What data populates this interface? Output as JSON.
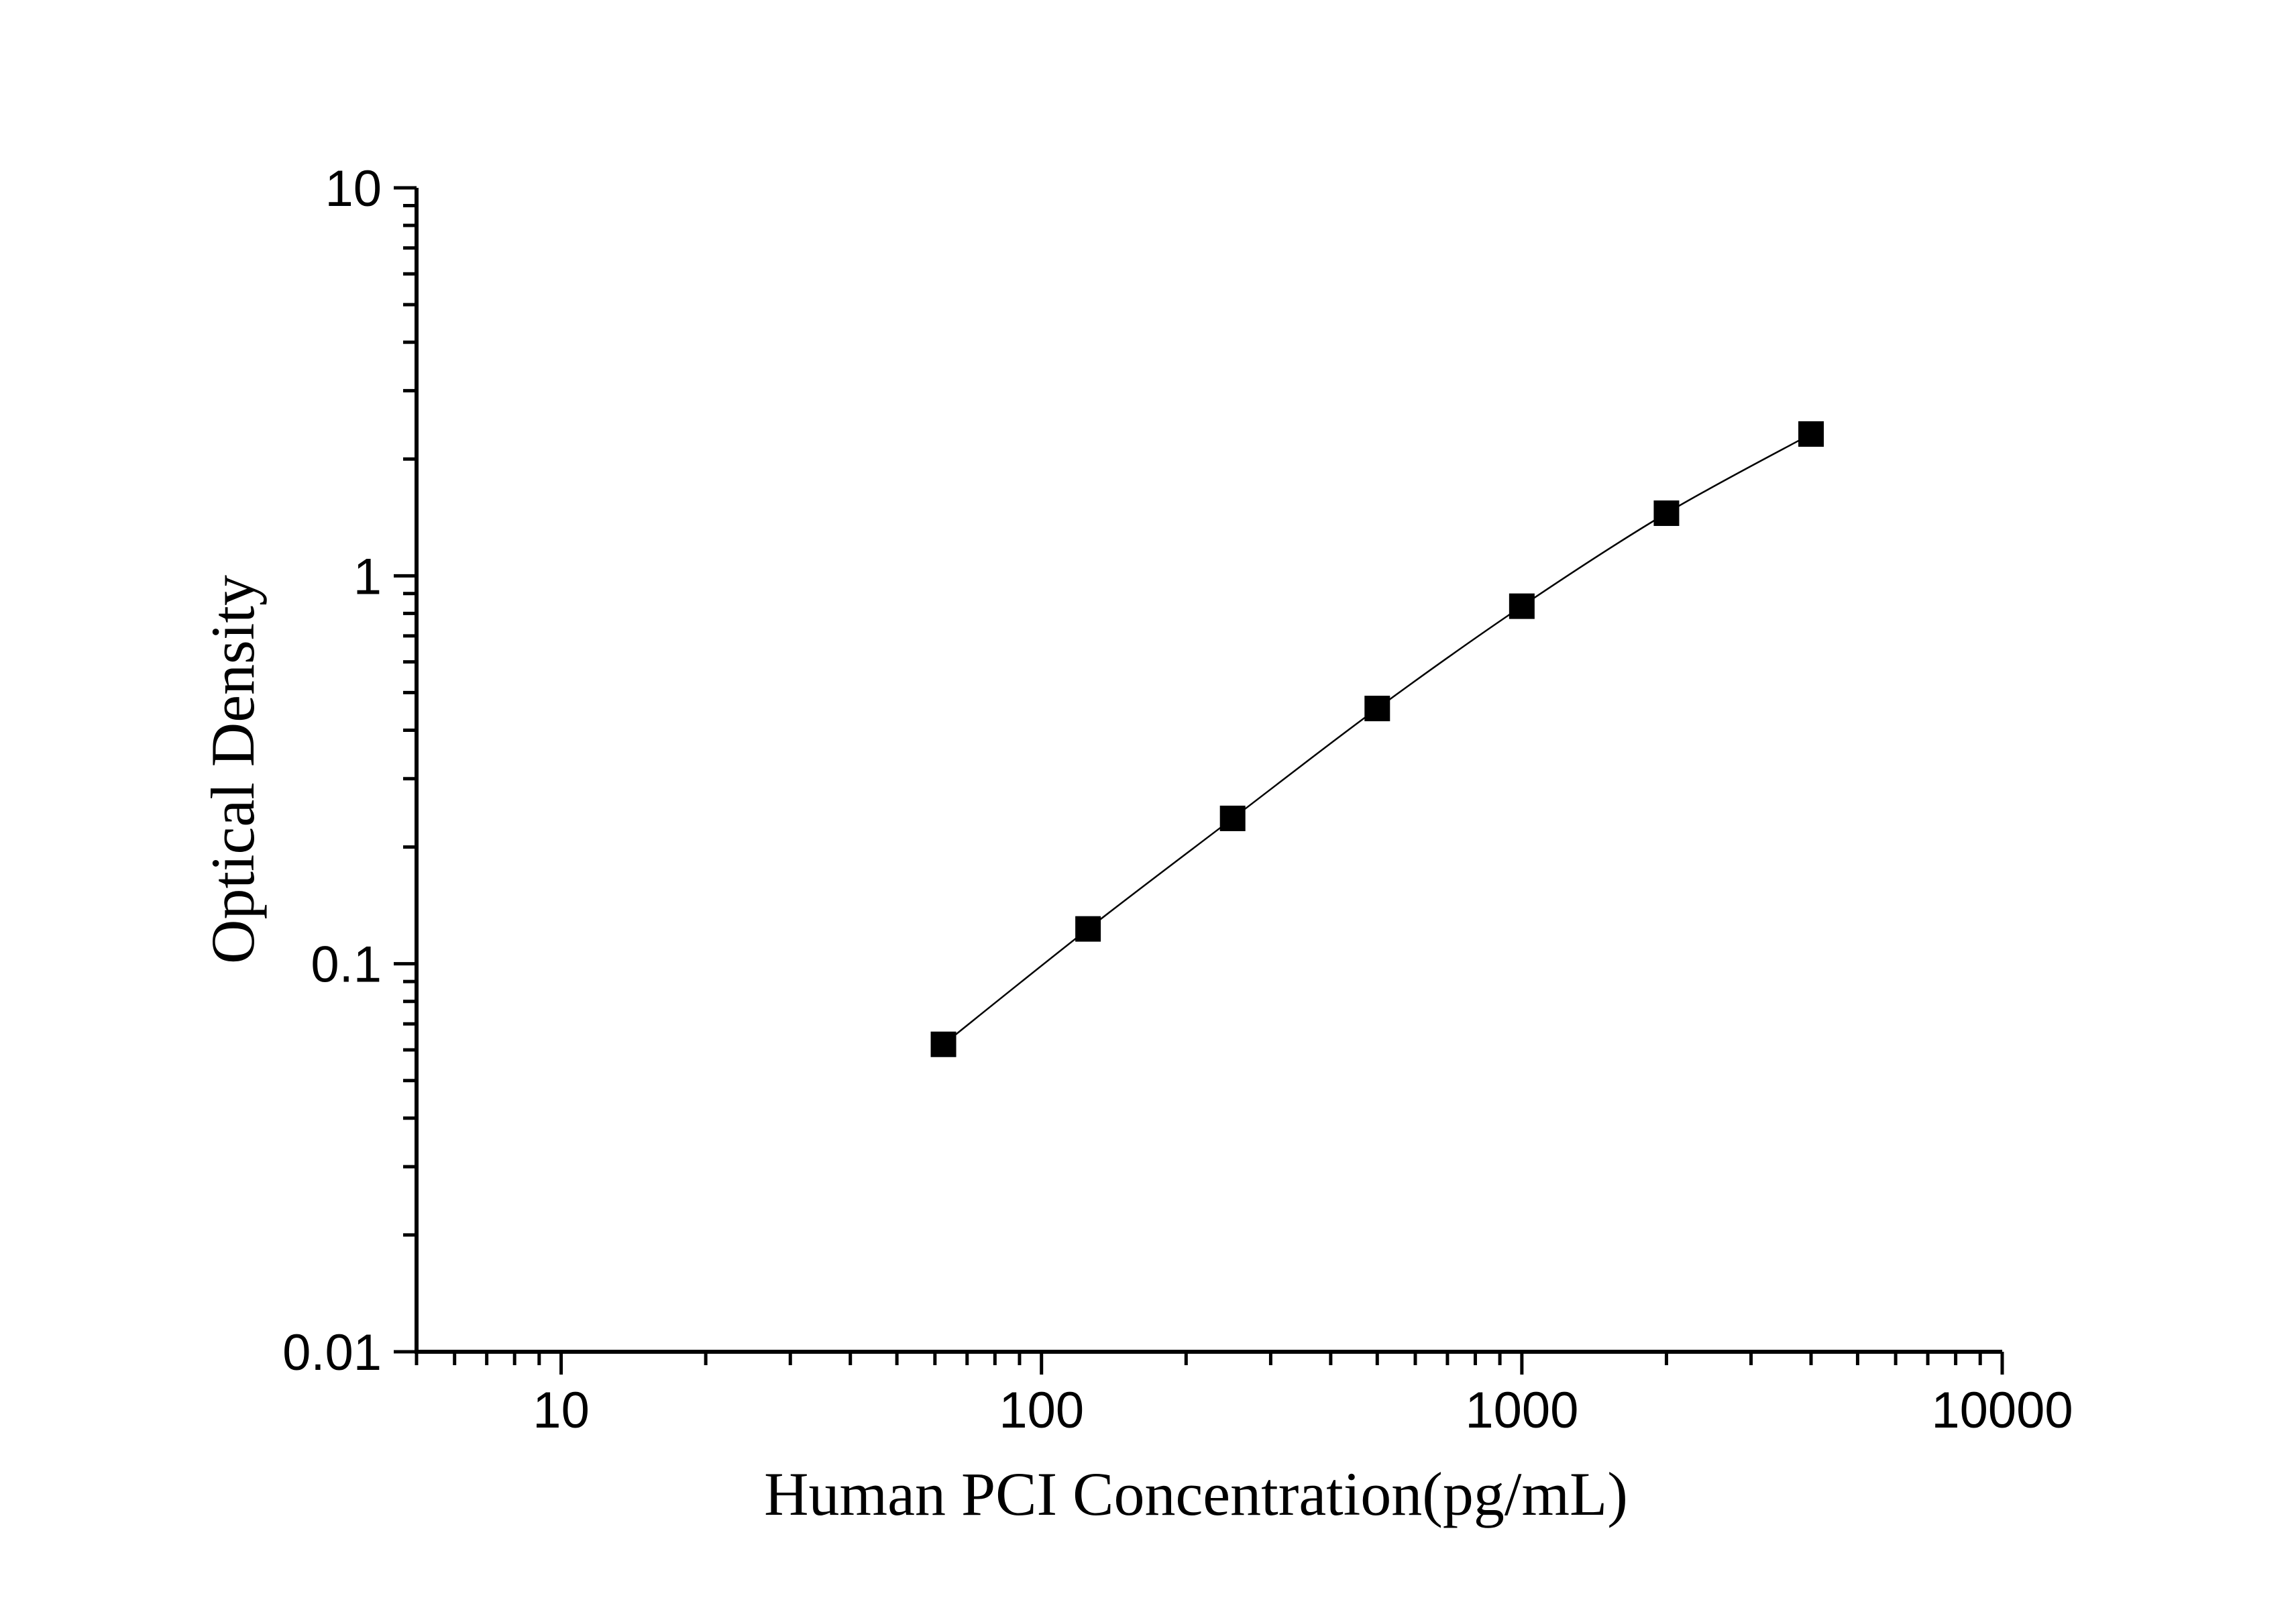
{
  "chart_data": {
    "type": "scatter",
    "title": "",
    "xlabel": "Human PCI Concentration(pg/mL)",
    "ylabel": "Optical Density",
    "xscale": "log",
    "yscale": "log",
    "xlim": [
      5,
      10000
    ],
    "ylim": [
      0.01,
      10
    ],
    "x_tick_labels": [
      "10",
      "100",
      "1000",
      "10000"
    ],
    "y_tick_labels": [
      "0.01",
      "0.1",
      "1",
      "10"
    ],
    "grid": false,
    "legend": "none",
    "marker": "square",
    "fit_line": true,
    "series": [
      {
        "x": [
          62.5,
          125,
          250,
          500,
          1000,
          2000,
          4000
        ],
        "y": [
          0.062,
          0.123,
          0.237,
          0.455,
          0.835,
          1.45,
          2.32
        ]
      }
    ]
  }
}
